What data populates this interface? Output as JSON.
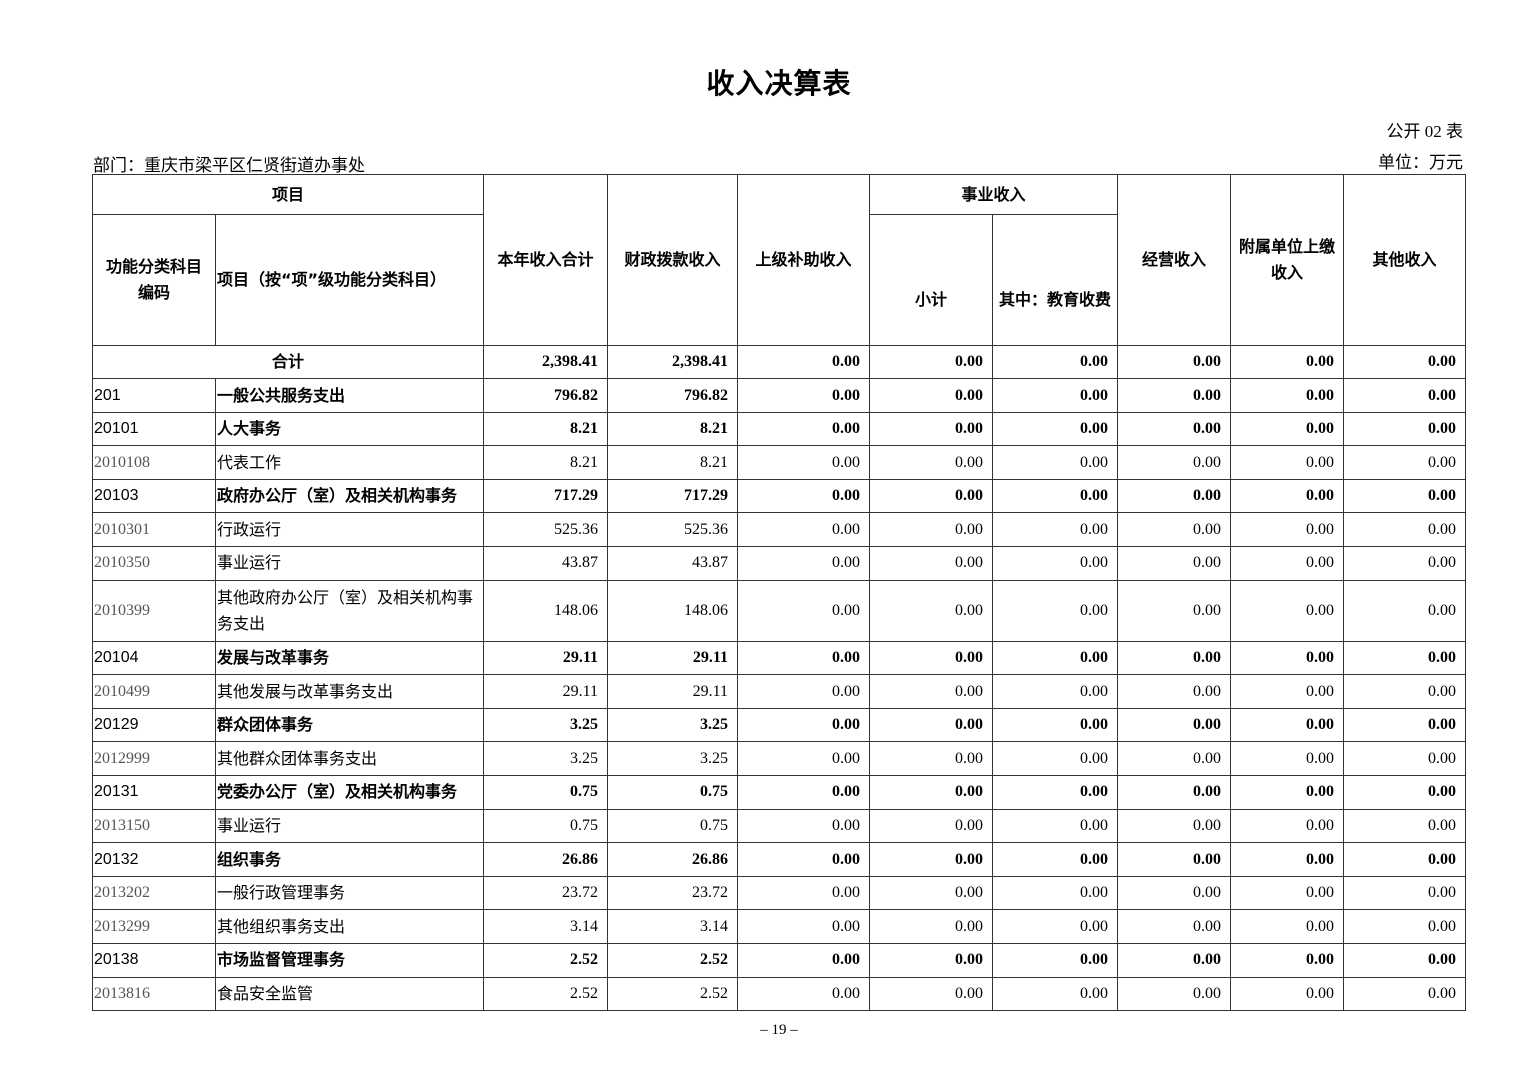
{
  "title": "收入决算表",
  "form_no": "公开 02 表",
  "department": "部门：重庆市梁平区仁贤街道办事处",
  "unit": "单位：万元",
  "headers": {
    "item": "项目",
    "code": "功能分类科目编码",
    "name": "项目（按“项”级功能分类科目）",
    "total": "本年收入合计",
    "fiscal": "财政拨款收入",
    "superior": "上级补助收入",
    "business": "事业收入",
    "subtotal": "小计",
    "education": "其中：教育收费",
    "operating": "经营收入",
    "affiliated": "附属单位上缴收入",
    "other": "其他收入"
  },
  "total_row": {
    "label": "合计",
    "values": [
      "2,398.41",
      "2,398.41",
      "0.00",
      "0.00",
      "0.00",
      "0.00",
      "0.00",
      "0.00"
    ]
  },
  "rows": [
    {
      "code": "201",
      "name": "一般公共服务支出",
      "bold": true,
      "values": [
        "796.82",
        "796.82",
        "0.00",
        "0.00",
        "0.00",
        "0.00",
        "0.00",
        "0.00"
      ]
    },
    {
      "code": "20101",
      "name": "人大事务",
      "bold": true,
      "values": [
        "8.21",
        "8.21",
        "0.00",
        "0.00",
        "0.00",
        "0.00",
        "0.00",
        "0.00"
      ]
    },
    {
      "code": "2010108",
      "name": "代表工作",
      "bold": false,
      "values": [
        "8.21",
        "8.21",
        "0.00",
        "0.00",
        "0.00",
        "0.00",
        "0.00",
        "0.00"
      ]
    },
    {
      "code": "20103",
      "name": "政府办公厅（室）及相关机构事务",
      "bold": true,
      "values": [
        "717.29",
        "717.29",
        "0.00",
        "0.00",
        "0.00",
        "0.00",
        "0.00",
        "0.00"
      ]
    },
    {
      "code": "2010301",
      "name": "行政运行",
      "bold": false,
      "values": [
        "525.36",
        "525.36",
        "0.00",
        "0.00",
        "0.00",
        "0.00",
        "0.00",
        "0.00"
      ]
    },
    {
      "code": "2010350",
      "name": "事业运行",
      "bold": false,
      "values": [
        "43.87",
        "43.87",
        "0.00",
        "0.00",
        "0.00",
        "0.00",
        "0.00",
        "0.00"
      ]
    },
    {
      "code": "2010399",
      "name": "其他政府办公厅（室）及相关机构事务支出",
      "bold": false,
      "tall": true,
      "values": [
        "148.06",
        "148.06",
        "0.00",
        "0.00",
        "0.00",
        "0.00",
        "0.00",
        "0.00"
      ]
    },
    {
      "code": "20104",
      "name": "发展与改革事务",
      "bold": true,
      "values": [
        "29.11",
        "29.11",
        "0.00",
        "0.00",
        "0.00",
        "0.00",
        "0.00",
        "0.00"
      ]
    },
    {
      "code": "2010499",
      "name": "其他发展与改革事务支出",
      "bold": false,
      "values": [
        "29.11",
        "29.11",
        "0.00",
        "0.00",
        "0.00",
        "0.00",
        "0.00",
        "0.00"
      ]
    },
    {
      "code": "20129",
      "name": "群众团体事务",
      "bold": true,
      "values": [
        "3.25",
        "3.25",
        "0.00",
        "0.00",
        "0.00",
        "0.00",
        "0.00",
        "0.00"
      ]
    },
    {
      "code": "2012999",
      "name": "其他群众团体事务支出",
      "bold": false,
      "values": [
        "3.25",
        "3.25",
        "0.00",
        "0.00",
        "0.00",
        "0.00",
        "0.00",
        "0.00"
      ]
    },
    {
      "code": "20131",
      "name": "党委办公厅（室）及相关机构事务",
      "bold": true,
      "values": [
        "0.75",
        "0.75",
        "0.00",
        "0.00",
        "0.00",
        "0.00",
        "0.00",
        "0.00"
      ]
    },
    {
      "code": "2013150",
      "name": "事业运行",
      "bold": false,
      "values": [
        "0.75",
        "0.75",
        "0.00",
        "0.00",
        "0.00",
        "0.00",
        "0.00",
        "0.00"
      ]
    },
    {
      "code": "20132",
      "name": "组织事务",
      "bold": true,
      "values": [
        "26.86",
        "26.86",
        "0.00",
        "0.00",
        "0.00",
        "0.00",
        "0.00",
        "0.00"
      ]
    },
    {
      "code": "2013202",
      "name": "一般行政管理事务",
      "bold": false,
      "values": [
        "23.72",
        "23.72",
        "0.00",
        "0.00",
        "0.00",
        "0.00",
        "0.00",
        "0.00"
      ]
    },
    {
      "code": "2013299",
      "name": "其他组织事务支出",
      "bold": false,
      "values": [
        "3.14",
        "3.14",
        "0.00",
        "0.00",
        "0.00",
        "0.00",
        "0.00",
        "0.00"
      ]
    },
    {
      "code": "20138",
      "name": "市场监督管理事务",
      "bold": true,
      "values": [
        "2.52",
        "2.52",
        "0.00",
        "0.00",
        "0.00",
        "0.00",
        "0.00",
        "0.00"
      ]
    },
    {
      "code": "2013816",
      "name": "食品安全监管",
      "bold": false,
      "values": [
        "2.52",
        "2.52",
        "0.00",
        "0.00",
        "0.00",
        "0.00",
        "0.00",
        "0.00"
      ]
    }
  ],
  "page_number": "– 19 –"
}
